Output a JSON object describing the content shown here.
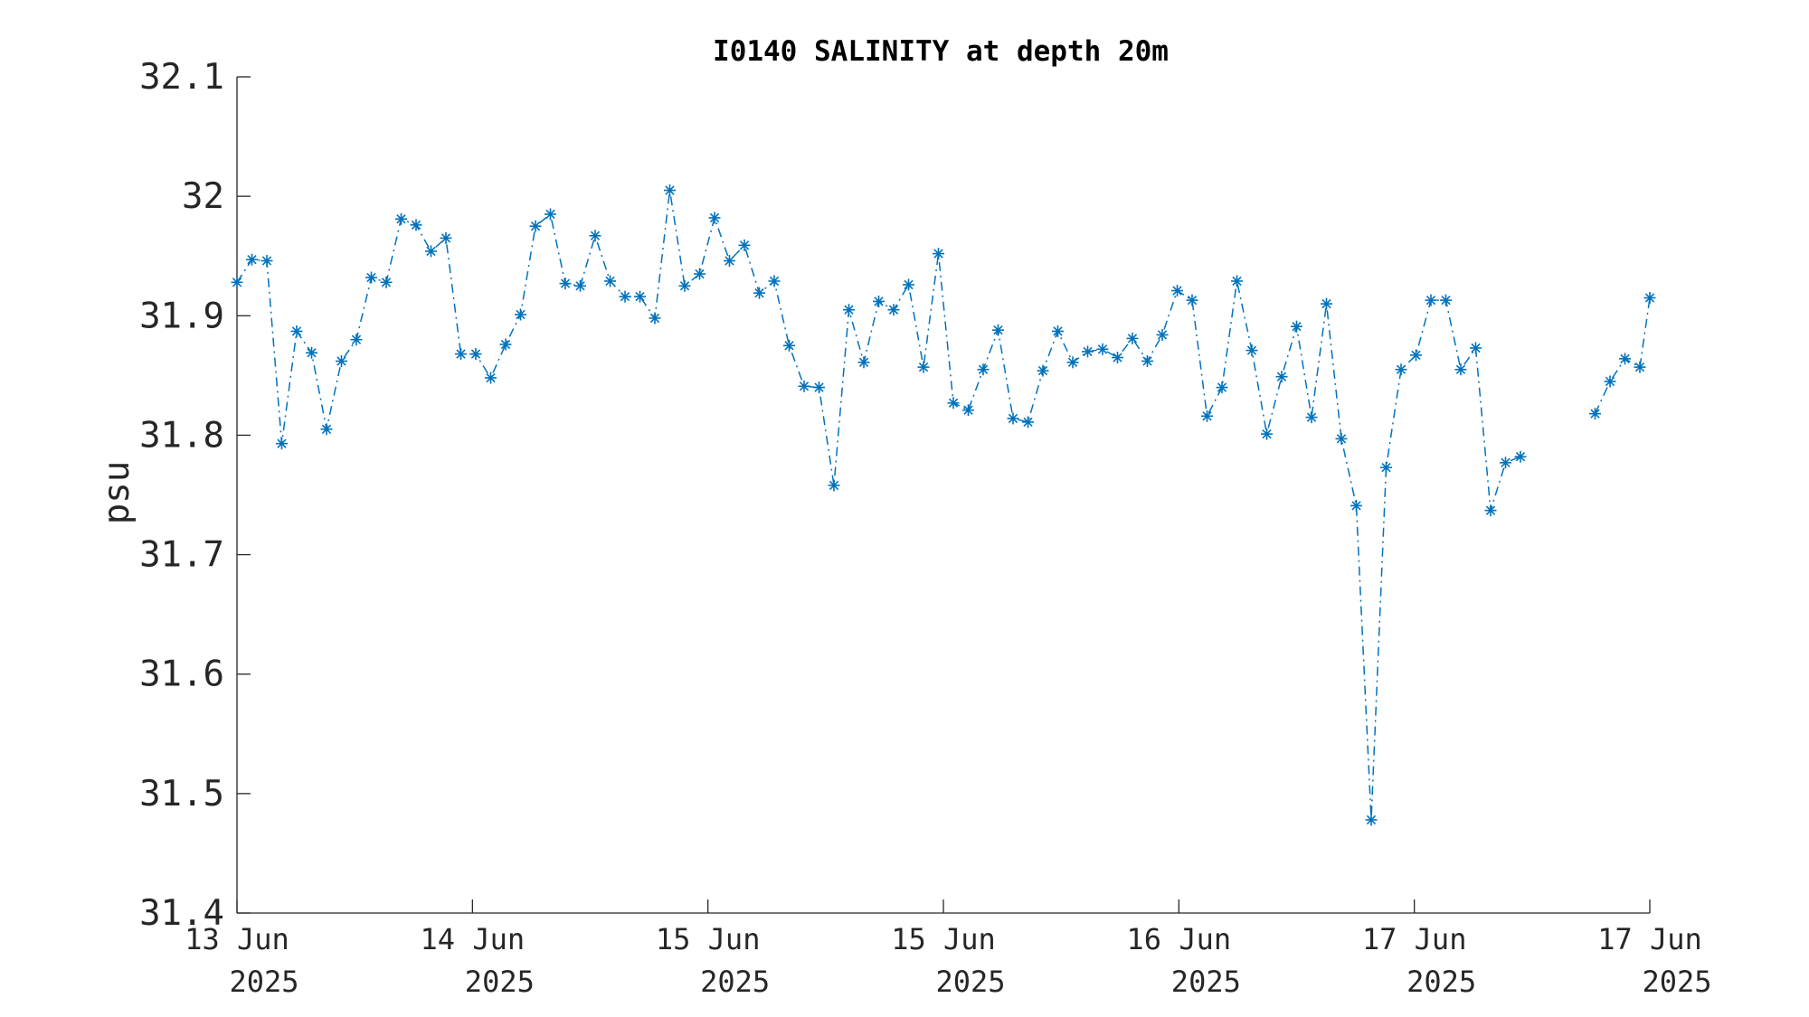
{
  "chart_data": {
    "type": "line",
    "title": "I0140 SALINITY at depth 20m",
    "xlabel": "",
    "ylabel": "psu",
    "ylim": [
      31.4,
      32.1
    ],
    "yticks": [
      31.4,
      31.5,
      31.6,
      31.7,
      31.8,
      31.9,
      32,
      32.1
    ],
    "ytick_labels": [
      "31.4",
      "31.5",
      "31.6",
      "31.7",
      "31.8",
      "31.9",
      "32",
      "32.1"
    ],
    "xticks": [
      {
        "value": 0,
        "line1": "13 Jun",
        "line2": "2025"
      },
      {
        "value": 1,
        "line1": "14 Jun",
        "line2": "2025"
      },
      {
        "value": 2,
        "line1": "15 Jun",
        "line2": "2025"
      },
      {
        "value": 3,
        "line1": "15 Jun",
        "line2": "2025"
      },
      {
        "value": 4,
        "line1": "16 Jun",
        "line2": "2025"
      },
      {
        "value": 5,
        "line1": "17 Jun",
        "line2": "2025"
      },
      {
        "value": 6,
        "line1": "17 Jun",
        "line2": "2025"
      }
    ],
    "xlim": [
      0,
      6
    ],
    "grid": false,
    "legend": "none",
    "series_color": "#0072BD",
    "marker": "asterisk",
    "line_style": "dash-dot",
    "series": [
      {
        "x": [
          0,
          0.0634,
          0.1268,
          0.1901,
          0.2535,
          0.3169,
          0.3803,
          0.4437,
          0.507,
          0.5704,
          0.6338,
          0.6972,
          0.7606,
          0.8239,
          0.8873,
          0.9507,
          1.0141,
          1.0775,
          1.1408,
          1.2042,
          1.2676,
          1.331,
          1.3944,
          1.4577,
          1.5211,
          1.5845,
          1.6479,
          1.7113,
          1.7746,
          1.838,
          1.9014,
          1.9648,
          2.0282,
          2.0915,
          2.1549,
          2.2183,
          2.2817,
          2.3451,
          2.4085,
          2.4718,
          2.5352,
          2.5986,
          2.662,
          2.7254,
          2.7887,
          2.8521,
          2.9155,
          2.9789,
          3.0423,
          3.1056,
          3.169,
          3.2324,
          3.2958,
          3.3592,
          3.4225,
          3.4859,
          3.5493,
          3.6127,
          3.6761,
          3.7394,
          3.8028,
          3.8662,
          3.9296,
          3.993,
          4.0563,
          4.1197,
          4.1831,
          4.2465,
          4.3099,
          4.3732,
          4.4366,
          4.5,
          4.5634,
          4.6268,
          4.6901,
          4.7535,
          4.8169,
          4.8803,
          4.9437,
          5.007,
          5.0704,
          5.1338,
          5.1972,
          5.2606,
          5.3239,
          5.3873,
          5.4507,
          5.5141
        ],
        "y": [
          31.928,
          31.947,
          31.946,
          31.793,
          31.887,
          31.869,
          31.805,
          31.862,
          31.88,
          31.932,
          31.928,
          31.981,
          31.976,
          31.954,
          31.965,
          31.868,
          31.868,
          31.848,
          31.876,
          31.901,
          31.975,
          31.985,
          31.927,
          31.925,
          31.967,
          31.929,
          31.916,
          31.916,
          31.898,
          32.005,
          31.925,
          31.935,
          31.982,
          31.946,
          31.959,
          31.919,
          31.929,
          31.875,
          31.841,
          31.84,
          31.758,
          31.905,
          31.861,
          31.912,
          31.905,
          31.926,
          31.857,
          31.952,
          31.827,
          31.821,
          31.855,
          31.888,
          31.814,
          31.811,
          31.854,
          31.887,
          31.861,
          31.87,
          31.872,
          31.865,
          31.881,
          31.862,
          31.884,
          31.921,
          31.913,
          31.816,
          31.84,
          31.929,
          31.871,
          31.801,
          31.849,
          31.891,
          31.815,
          31.91,
          31.797,
          31.741,
          31.478,
          31.773,
          31.855,
          31.867,
          31.913,
          31.913,
          31.855,
          31.873,
          31.737,
          31.777,
          31.782,
          null
        ]
      },
      {
        "x": [
          5.7676,
          5.831,
          5.8944,
          5.9577,
          6.0
        ],
        "y": [
          31.818,
          31.845,
          31.864,
          31.857,
          31.915
        ]
      }
    ]
  }
}
